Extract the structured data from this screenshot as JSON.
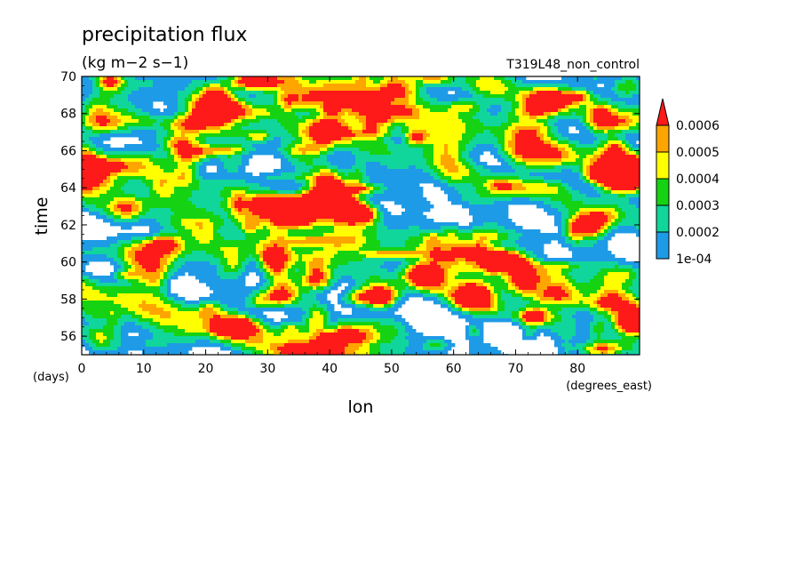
{
  "chart_data": {
    "type": "heatmap",
    "title": "precipitation flux",
    "units_label": "(kg m−2 s−1)",
    "run_label": "T319L48_non_control",
    "xlabel": "lon",
    "x_units": "(degrees_east)",
    "ylabel": "time",
    "y_units": "(days)",
    "xlim": [
      0,
      90
    ],
    "ylim": [
      55,
      70
    ],
    "x_ticks": [
      0,
      10,
      20,
      30,
      40,
      50,
      60,
      70,
      80
    ],
    "x_tick_labels": [
      "0",
      "10",
      "20",
      "30",
      "40",
      "50",
      "60",
      "70",
      "80"
    ],
    "y_ticks": [
      56,
      58,
      60,
      62,
      64,
      66,
      68,
      70
    ],
    "y_tick_labels": [
      "56",
      "58",
      "60",
      "62",
      "64",
      "66",
      "68",
      "70"
    ],
    "colorbar": {
      "levels": [
        0.0001,
        0.0002,
        0.0003,
        0.0004,
        0.0005,
        0.0006
      ],
      "level_labels": [
        "1e-04",
        "0.0002",
        "0.0003",
        "0.0004",
        "0.0005",
        "0.0006"
      ],
      "colors": [
        "#ffffff",
        "#1e9be6",
        "#10d69b",
        "#15d312",
        "#ffff00",
        "#ffa500",
        "#ff1a1a"
      ],
      "extend": "max"
    },
    "grid": false,
    "features": [
      {
        "lon": 3,
        "time": 67.5,
        "amp": 0.0006,
        "w": 4,
        "h": 0.7
      },
      {
        "lon": 0.5,
        "time": 64.8,
        "amp": 0.00065,
        "w": 2.5,
        "h": 1.0
      },
      {
        "lon": 22,
        "time": 68.3,
        "amp": 0.0007,
        "w": 3.5,
        "h": 0.7
      },
      {
        "lon": 18,
        "time": 65.8,
        "amp": 0.0005,
        "w": 3.5,
        "h": 0.5
      },
      {
        "lon": 28,
        "time": 69.7,
        "amp": 0.0007,
        "w": 4,
        "h": 0.4
      },
      {
        "lon": 32,
        "time": 63.0,
        "amp": 0.0007,
        "w": 5,
        "h": 0.6
      },
      {
        "lon": 40,
        "time": 63.4,
        "amp": 0.00075,
        "w": 3.5,
        "h": 0.8
      },
      {
        "lon": 45,
        "time": 62.6,
        "amp": 0.0006,
        "w": 3,
        "h": 0.5
      },
      {
        "lon": 13,
        "time": 61.0,
        "amp": 0.0007,
        "w": 3,
        "h": 0.5
      },
      {
        "lon": 31,
        "time": 60.0,
        "amp": 0.0007,
        "w": 2.5,
        "h": 0.9
      },
      {
        "lon": 38,
        "time": 59.0,
        "amp": 0.0006,
        "w": 3,
        "h": 0.6
      },
      {
        "lon": 48,
        "time": 58.1,
        "amp": 0.0007,
        "w": 2.5,
        "h": 0.5
      },
      {
        "lon": 55,
        "time": 59.3,
        "amp": 0.0006,
        "w": 3,
        "h": 0.5
      },
      {
        "lon": 63,
        "time": 58.2,
        "amp": 0.0007,
        "w": 3,
        "h": 0.7
      },
      {
        "lon": 69,
        "time": 60.0,
        "amp": 0.0007,
        "w": 3,
        "h": 0.5
      },
      {
        "lon": 54,
        "time": 66.7,
        "amp": 0.00055,
        "w": 2,
        "h": 0.5
      },
      {
        "lon": 75,
        "time": 68.6,
        "amp": 0.0006,
        "w": 3.5,
        "h": 0.8
      },
      {
        "lon": 86,
        "time": 64.8,
        "amp": 0.00075,
        "w": 4,
        "h": 1.0
      },
      {
        "lon": 82,
        "time": 62.0,
        "amp": 0.0007,
        "w": 3,
        "h": 0.7
      },
      {
        "lon": 24,
        "time": 56.5,
        "amp": 0.0007,
        "w": 3,
        "h": 0.5
      },
      {
        "lon": 36,
        "time": 55.2,
        "amp": 0.0007,
        "w": 4,
        "h": 0.4
      },
      {
        "lon": 89,
        "time": 56.8,
        "amp": 0.0006,
        "w": 2.5,
        "h": 0.5
      },
      {
        "lon": 84,
        "time": 55.3,
        "amp": 0.0006,
        "w": 3.5,
        "h": 0.4
      },
      {
        "lon": 60,
        "time": 61.5,
        "amp": 0.0003,
        "w": 2.5,
        "h": 0.5
      },
      {
        "lon": 8,
        "time": 63.0,
        "amp": 0.0003,
        "w": 3,
        "h": 0.5
      },
      {
        "lon": 50,
        "time": 69.2,
        "amp": 0.0003,
        "w": 3,
        "h": 0.4
      },
      {
        "lon": 70,
        "time": 64.0,
        "amp": 0.0003,
        "w": 3,
        "h": 0.5
      }
    ]
  }
}
